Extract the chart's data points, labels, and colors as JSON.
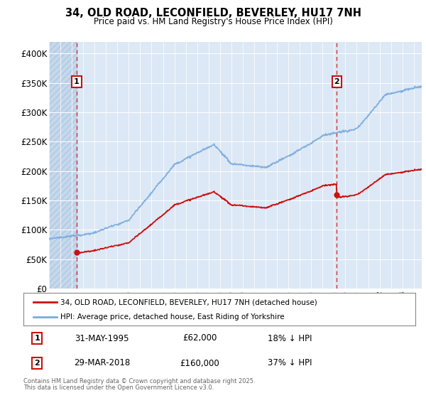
{
  "title1": "34, OLD ROAD, LECONFIELD, BEVERLEY, HU17 7NH",
  "title2": "Price paid vs. HM Land Registry's House Price Index (HPI)",
  "ylim": [
    0,
    420000
  ],
  "yticks": [
    0,
    50000,
    100000,
    150000,
    200000,
    250000,
    300000,
    350000,
    400000
  ],
  "ytick_labels": [
    "£0",
    "£50K",
    "£100K",
    "£150K",
    "£200K",
    "£250K",
    "£300K",
    "£350K",
    "£400K"
  ],
  "hpi_color": "#7aaadd",
  "price_color": "#cc1111",
  "bg_color": "#dce8f5",
  "grid_color": "#ffffff",
  "purchase1_date": 1995.42,
  "purchase1_price": 62000,
  "purchase2_date": 2018.25,
  "purchase2_price": 160000,
  "xstart": 1993.0,
  "xend": 2025.7,
  "legend_label1": "34, OLD ROAD, LECONFIELD, BEVERLEY, HU17 7NH (detached house)",
  "legend_label2": "HPI: Average price, detached house, East Riding of Yorkshire",
  "footer1": "Contains HM Land Registry data © Crown copyright and database right 2025.",
  "footer2": "This data is licensed under the Open Government Licence v3.0.",
  "note1_date": "31-MAY-1995",
  "note1_price": "£62,000",
  "note1_hpi": "18% ↓ HPI",
  "note2_date": "29-MAR-2018",
  "note2_price": "£160,000",
  "note2_hpi": "37% ↓ HPI"
}
